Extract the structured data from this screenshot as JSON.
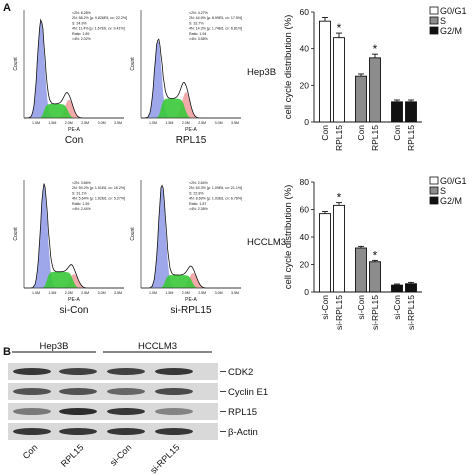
{
  "panel_a": {
    "label": "A",
    "flow_y_label": "Count",
    "flow_x_label": "PE-A",
    "flow_xticks": [
      "1.0M",
      "1.5M",
      "2.0M",
      "2.5M",
      "3.0M",
      "3.5M"
    ],
    "cell_lines": [
      "Hep3B",
      "HCCLM3"
    ],
    "flow": [
      {
        "sample": "Con",
        "stats": [
          "<2N: 6.28%",
          "2N: 58.2%  [µ: 9.826E5, cv: 22.2%]",
          "S: 24.9%",
          "4N: 11.4%  [µ: 1.67E6, cv: 9.41%]",
          "Ratio: 1.89",
          ">4N: 2.02%"
        ]
      },
      {
        "sample": "RPL15",
        "stats": [
          "<2N: 4.27%",
          "2N: 44.9%  [µ: 8.99E5, cv: 17.5%]",
          "S: 33.7%",
          "4N: 14.3%  [µ: 1.74E6, cv: 6.81%]",
          "Ratio: 1.94",
          ">4N: 3.58%"
        ]
      },
      {
        "sample": "si-Con",
        "stats": [
          "<2N: 3.66%",
          "2N: 59.2%  [µ: 1.01E6, cv: 16.2%]",
          "S: 31.1%",
          "4N: 5.64%  [µ: 1.62E6, cv: 5.27%]",
          "Ratio: 1.59",
          ">4N: 2.44%"
        ]
      },
      {
        "sample": "si-RPL15",
        "stats": [
          "<2N: 2.64%",
          "2N: 63.3%  [µ: 1.09E6, cv: 21.1%]",
          "S: 22.8%",
          "4N: 8.69%  [µ: 1.93E6, cv: 6.76%]",
          "Ratio: 1.87",
          ">4N: 2.38%"
        ]
      }
    ]
  },
  "chart_data": [
    {
      "type": "bar",
      "y_label": "cell cycle distribution (%)",
      "categories": [
        "Con",
        "RPL15"
      ],
      "series": [
        {
          "name": "G0/G1",
          "color": "#ffffff",
          "values": [
            55,
            46
          ],
          "errors": [
            2,
            2.5
          ]
        },
        {
          "name": "S",
          "color": "#8c8c8c",
          "values": [
            25,
            35
          ],
          "errors": [
            1.2,
            2
          ]
        },
        {
          "name": "G2/M",
          "color": "#111111",
          "values": [
            11,
            11
          ],
          "errors": [
            1,
            1
          ]
        }
      ],
      "annotations": [
        {
          "text": "*",
          "series": 0,
          "category": 1
        },
        {
          "text": "*",
          "series": 1,
          "category": 1
        }
      ],
      "ylim": [
        0,
        60
      ],
      "yticks": [
        0,
        20,
        40,
        60
      ]
    },
    {
      "type": "bar",
      "y_label": "cell cycle distribution (%)",
      "categories": [
        "si-Con",
        "si-RPL15"
      ],
      "series": [
        {
          "name": "G0/G1",
          "color": "#ffffff",
          "values": [
            57,
            63
          ],
          "errors": [
            1.5,
            2
          ]
        },
        {
          "name": "S",
          "color": "#8c8c8c",
          "values": [
            32,
            22
          ],
          "errors": [
            1.2,
            1
          ]
        },
        {
          "name": "G2/M",
          "color": "#111111",
          "values": [
            5,
            6
          ],
          "errors": [
            0.8,
            1
          ]
        }
      ],
      "annotations": [
        {
          "text": "*",
          "series": 0,
          "category": 1
        },
        {
          "text": "*",
          "series": 1,
          "category": 1
        }
      ],
      "ylim": [
        0,
        80
      ],
      "yticks": [
        0,
        20,
        40,
        60,
        80
      ]
    }
  ],
  "panel_b": {
    "label": "B",
    "cell_lines": [
      "Hep3B",
      "HCCLM3"
    ],
    "proteins": [
      "CDK2",
      "Cyclin E1",
      "RPL15",
      "β-Actin"
    ],
    "lanes": [
      "Con",
      "RPL15",
      "si-Con",
      "si-RPL15"
    ]
  }
}
